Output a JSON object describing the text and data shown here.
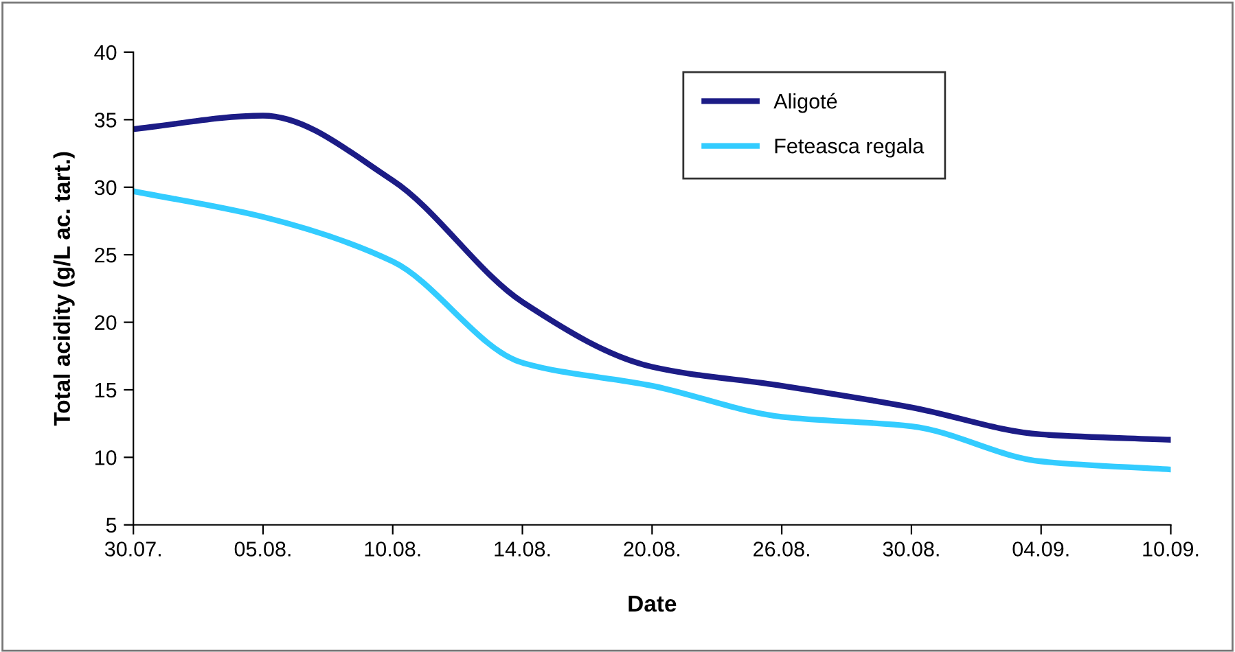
{
  "chart_data": {
    "type": "line",
    "xlabel": "Date",
    "ylabel": "Total acidity (g/L ac. tart.)",
    "categories": [
      "30.07.",
      "05.08.",
      "10.08.",
      "14.08.",
      "20.08.",
      "26.08.",
      "30.08.",
      "04.09.",
      "10.09."
    ],
    "series": [
      {
        "name": "Aligoté",
        "color": "#1c1c86",
        "values": [
          34.3,
          35.3,
          30.5,
          21.5,
          16.7,
          15.3,
          13.7,
          11.7,
          11.3
        ]
      },
      {
        "name": "Feteasca regala",
        "color": "#33ccff",
        "values": [
          29.7,
          27.8,
          24.5,
          17.0,
          15.3,
          13.0,
          12.3,
          9.7,
          9.1
        ]
      }
    ],
    "ylim": [
      5,
      40
    ],
    "yticks": [
      5,
      10,
      15,
      20,
      25,
      30,
      35,
      40
    ],
    "grid": false,
    "legend": "top right",
    "marker": "none",
    "line_style": "solid"
  }
}
